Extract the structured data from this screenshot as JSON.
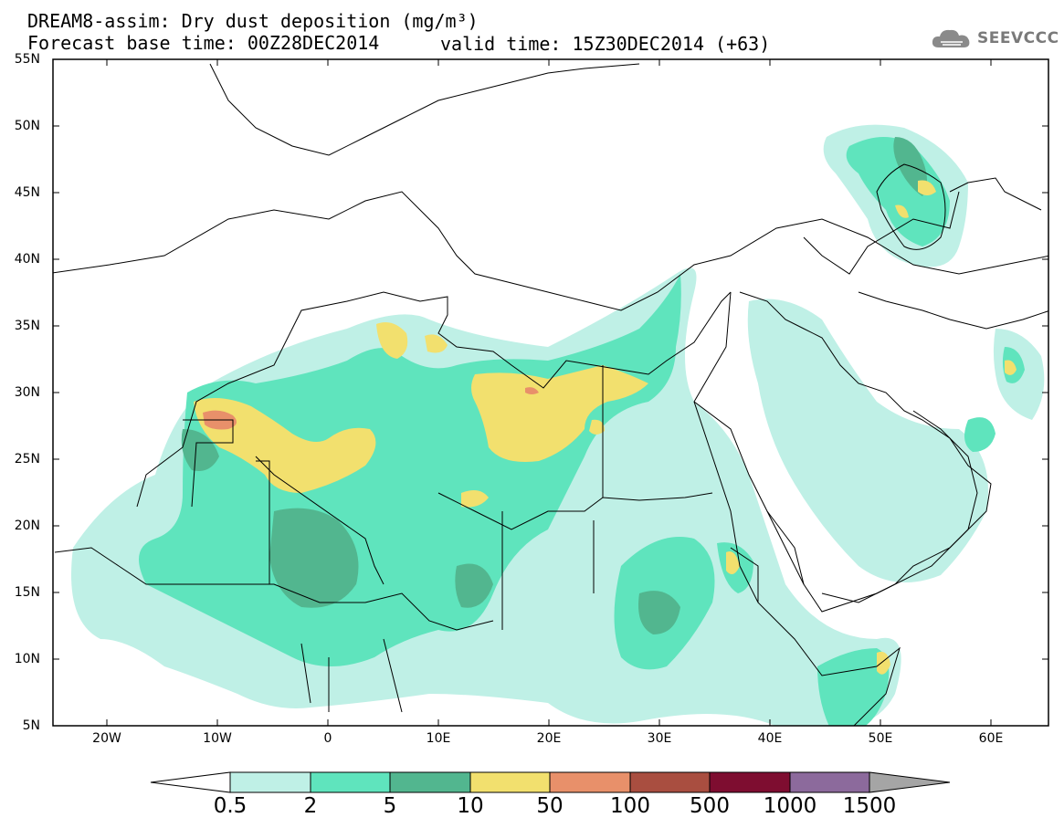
{
  "header": {
    "title_line1": "DREAM8-assim: Dry dust deposition (mg/m³)",
    "title_line2": "Forecast base time: 00Z28DEC2014",
    "valid_time": "valid time: 15Z30DEC2014 (+63)",
    "logo_text": "SEEVCCC",
    "logo_icon": "cloud-icon"
  },
  "map": {
    "lat_labels": [
      "55N",
      "50N",
      "45N",
      "40N",
      "35N",
      "30N",
      "25N",
      "20N",
      "15N",
      "10N",
      "5N"
    ],
    "lon_labels": [
      "20W",
      "10W",
      "0",
      "10E",
      "20E",
      "30E",
      "40E",
      "50E",
      "60E"
    ],
    "extent": {
      "lon": [
        -25,
        65
      ],
      "lat": [
        5,
        55
      ]
    },
    "colors": {
      "land_border": "#000000",
      "background": "#ffffff"
    }
  },
  "legend": {
    "labels": [
      "0.5",
      "2",
      "5",
      "10",
      "50",
      "100",
      "500",
      "1000",
      "1500"
    ],
    "colors": [
      "#ffffff",
      "#bff0e6",
      "#5fe4bd",
      "#52b68f",
      "#f2e06e",
      "#e8906a",
      "#a94e40",
      "#7e0d30",
      "#8c6a9c",
      "#a5a5a5"
    ]
  }
}
